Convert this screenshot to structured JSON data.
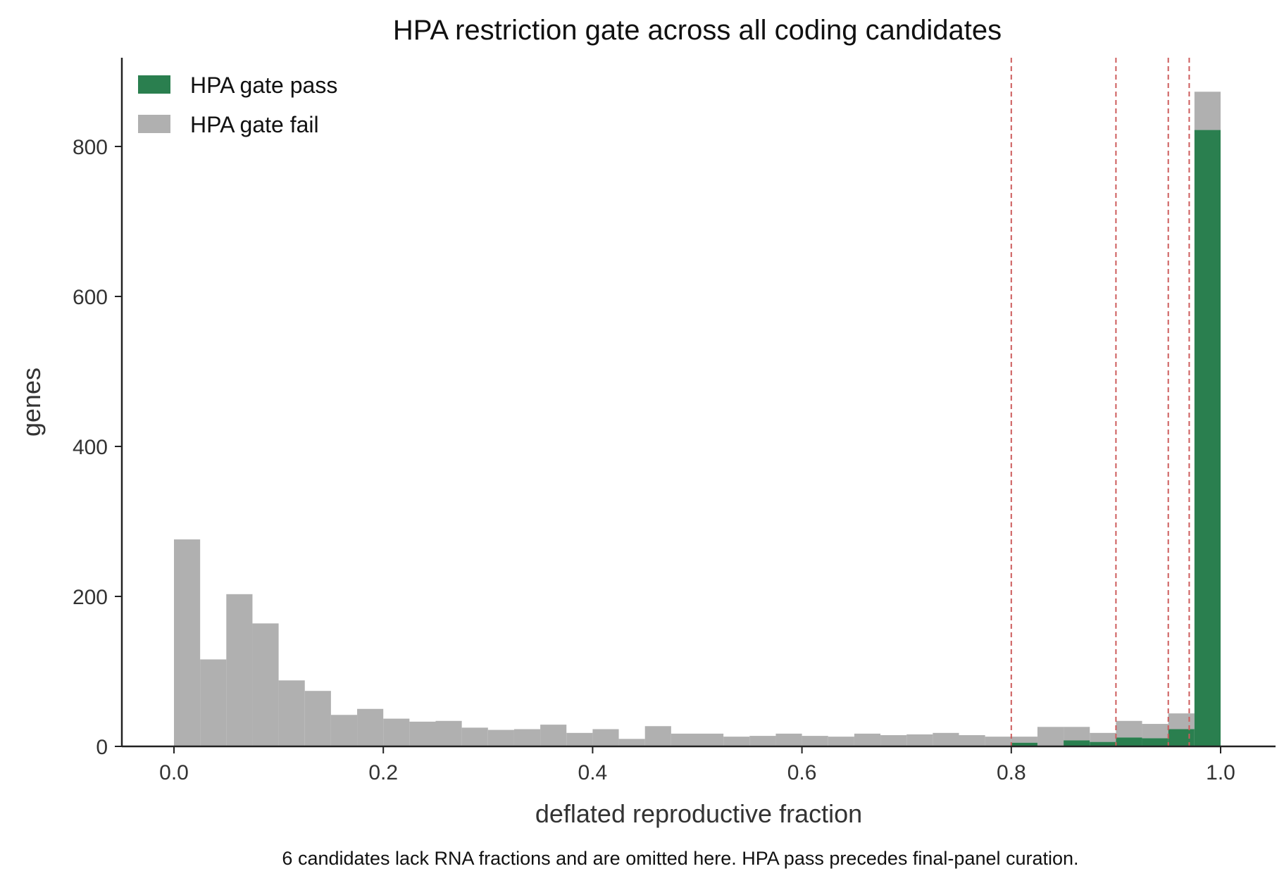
{
  "chart_data": {
    "type": "bar",
    "stacked": true,
    "title": "HPA restriction gate across all coding candidates",
    "xlabel": "deflated reproductive fraction",
    "ylabel": "genes",
    "caption": "6 candidates lack RNA fractions and are omitted here. HPA pass precedes final-panel curation.",
    "xlim": [
      -0.05,
      1.05
    ],
    "ylim": [
      0,
      920
    ],
    "x_ticks": [
      "0.0",
      "0.2",
      "0.4",
      "0.6",
      "0.8",
      "1.0"
    ],
    "y_ticks": [
      "0",
      "200",
      "400",
      "600",
      "800"
    ],
    "x_tick_values": [
      0,
      0.2,
      0.4,
      0.6,
      0.8,
      1.0
    ],
    "y_tick_values": [
      0,
      200,
      400,
      600,
      800
    ],
    "bin_width": 0.025,
    "bin_starts": [
      0.0,
      0.025,
      0.05,
      0.075,
      0.1,
      0.125,
      0.15,
      0.175,
      0.2,
      0.225,
      0.25,
      0.275,
      0.3,
      0.325,
      0.35,
      0.375,
      0.4,
      0.425,
      0.45,
      0.475,
      0.5,
      0.525,
      0.55,
      0.575,
      0.6,
      0.625,
      0.65,
      0.675,
      0.7,
      0.725,
      0.75,
      0.775,
      0.8,
      0.825,
      0.85,
      0.875,
      0.9,
      0.925,
      0.95,
      0.975
    ],
    "series": [
      {
        "name": "HPA gate pass",
        "color": "#2a7f4f",
        "values": [
          0,
          0,
          0,
          0,
          0,
          0,
          0,
          0,
          0,
          0,
          0,
          0,
          0,
          0,
          0,
          0,
          0,
          0,
          0,
          0,
          0,
          0,
          0,
          0,
          0,
          0,
          0,
          0,
          0,
          0,
          0,
          0,
          5,
          0,
          8,
          6,
          12,
          11,
          23,
          822
        ]
      },
      {
        "name": "HPA gate fail",
        "color": "#b0b0b0",
        "values": [
          276,
          116,
          203,
          164,
          88,
          74,
          42,
          50,
          37,
          33,
          34,
          25,
          22,
          23,
          29,
          18,
          23,
          10,
          27,
          17,
          17,
          13,
          14,
          17,
          14,
          13,
          17,
          15,
          16,
          18,
          15,
          13,
          8,
          26,
          18,
          12,
          22,
          19,
          21,
          51
        ]
      }
    ],
    "threshold_lines": {
      "x": [
        0.8,
        0.9,
        0.95,
        0.97
      ],
      "color": "#cd5c5c"
    },
    "legend_position": "top-left",
    "grid": false
  }
}
